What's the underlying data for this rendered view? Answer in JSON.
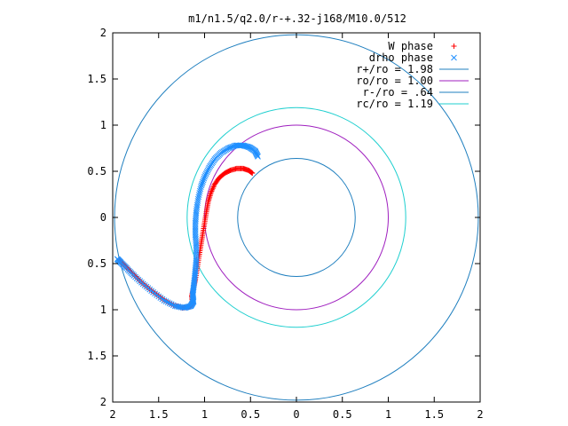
{
  "chart_data": {
    "type": "scatter",
    "title": "m1/n1.5/q2.0/r-+.32-j168/M10.0/512",
    "xlabel": "",
    "ylabel": "",
    "xlim": [
      -2,
      2
    ],
    "ylim": [
      -2,
      2
    ],
    "x_ticks": [
      "2",
      "1.5",
      "1",
      "0.5",
      "0",
      "0.5",
      "1",
      "1.5",
      "2"
    ],
    "y_ticks": [
      "2",
      "1.5",
      "1",
      "0.5",
      "0",
      "0.5",
      "1",
      "1.5",
      "2"
    ],
    "grid": false,
    "legend_position": "top-right",
    "series": [
      {
        "name": "W phase",
        "kind": "points",
        "marker": "+",
        "color": "#ff0000",
        "points": [
          [
            -0.48,
            0.48
          ],
          [
            -0.52,
            0.51
          ],
          [
            -0.58,
            0.53
          ],
          [
            -0.65,
            0.53
          ],
          [
            -0.72,
            0.51
          ],
          [
            -0.78,
            0.48
          ],
          [
            -0.84,
            0.43
          ],
          [
            -0.89,
            0.36
          ],
          [
            -0.93,
            0.27
          ],
          [
            -0.96,
            0.17
          ],
          [
            -0.98,
            0.06
          ],
          [
            -1.0,
            -0.06
          ],
          [
            -1.02,
            -0.18
          ],
          [
            -1.04,
            -0.3
          ],
          [
            -1.06,
            -0.42
          ],
          [
            -1.08,
            -0.55
          ],
          [
            -1.1,
            -0.67
          ],
          [
            -1.12,
            -0.77
          ],
          [
            -1.14,
            -0.85
          ],
          [
            -1.13,
            -0.93
          ],
          [
            -1.16,
            -0.97
          ],
          [
            -1.24,
            -0.98
          ],
          [
            -1.34,
            -0.95
          ],
          [
            -1.46,
            -0.88
          ],
          [
            -1.58,
            -0.79
          ],
          [
            -1.69,
            -0.7
          ],
          [
            -1.78,
            -0.61
          ],
          [
            -1.85,
            -0.54
          ],
          [
            -1.9,
            -0.49
          ],
          [
            -1.93,
            -0.46
          ]
        ]
      },
      {
        "name": "drho phase",
        "kind": "points",
        "marker": "x",
        "color": "#1f8fff",
        "points": [
          [
            -0.42,
            0.66
          ],
          [
            -0.45,
            0.72
          ],
          [
            -0.51,
            0.76
          ],
          [
            -0.58,
            0.78
          ],
          [
            -0.66,
            0.78
          ],
          [
            -0.74,
            0.75
          ],
          [
            -0.82,
            0.7
          ],
          [
            -0.89,
            0.63
          ],
          [
            -0.95,
            0.54
          ],
          [
            -1.0,
            0.44
          ],
          [
            -1.04,
            0.33
          ],
          [
            -1.07,
            0.2
          ],
          [
            -1.09,
            0.07
          ],
          [
            -1.1,
            -0.06
          ],
          [
            -1.1,
            -0.19
          ],
          [
            -1.09,
            -0.32
          ],
          [
            -1.09,
            -0.45
          ],
          [
            -1.1,
            -0.57
          ],
          [
            -1.11,
            -0.67
          ],
          [
            -1.12,
            -0.76
          ],
          [
            -1.13,
            -0.84
          ],
          [
            -1.12,
            -0.91
          ],
          [
            -1.15,
            -0.96
          ],
          [
            -1.22,
            -0.98
          ],
          [
            -1.32,
            -0.96
          ],
          [
            -1.44,
            -0.9
          ],
          [
            -1.56,
            -0.81
          ],
          [
            -1.67,
            -0.72
          ],
          [
            -1.77,
            -0.63
          ],
          [
            -1.85,
            -0.55
          ],
          [
            -1.91,
            -0.49
          ],
          [
            -1.95,
            -0.45
          ]
        ]
      },
      {
        "name": "r+/ro = 1.98",
        "kind": "circle",
        "radius": 1.98,
        "color": "#1f7fbf"
      },
      {
        "name": "ro/ro = 1.00",
        "kind": "circle",
        "radius": 1.0,
        "color": "#9f1fbf"
      },
      {
        "name": "r-/ro = .64",
        "kind": "circle",
        "radius": 0.64,
        "color": "#1f7fbf"
      },
      {
        "name": "rc/ro = 1.19",
        "kind": "circle",
        "radius": 1.19,
        "color": "#1fcfcf"
      }
    ]
  }
}
